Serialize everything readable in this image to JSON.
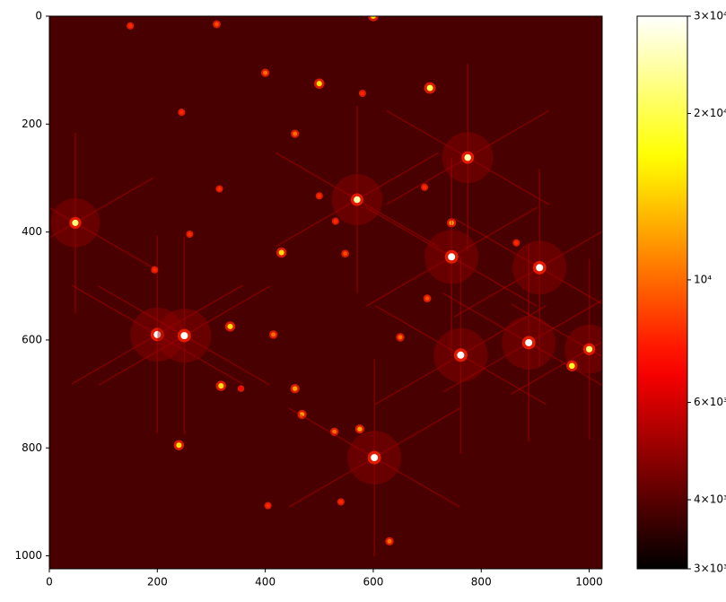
{
  "chart_data": {
    "type": "image",
    "xlim": [
      0,
      1024
    ],
    "ylim": [
      0,
      1024
    ],
    "y_inverted": true,
    "xticks": [
      0,
      200,
      400,
      600,
      800,
      1000
    ],
    "yticks": [
      0,
      200,
      400,
      600,
      800,
      1000
    ],
    "colormap": "hot",
    "background_value": 3800,
    "colorbar": {
      "scale": "log",
      "lim": [
        3000,
        30000
      ],
      "ticks": [
        {
          "value": 3000,
          "label": "3×10³"
        },
        {
          "value": 4000,
          "label": "4×10³"
        },
        {
          "value": 6000,
          "label": "6×10³"
        },
        {
          "value": 10000,
          "label": "10⁴"
        },
        {
          "value": 20000,
          "label": "2×10⁴"
        },
        {
          "value": 30000,
          "label": "3×10⁴"
        }
      ]
    },
    "stars": {
      "x": [
        600,
        150,
        310,
        400,
        500,
        705,
        580,
        245,
        455,
        775,
        570,
        315,
        48,
        745,
        745,
        908,
        430,
        260,
        548,
        530,
        500,
        695,
        700,
        200,
        250,
        335,
        415,
        650,
        762,
        888,
        1000,
        968,
        318,
        455,
        468,
        575,
        528,
        602,
        240,
        630,
        540,
        405,
        195,
        355,
        865
      ],
      "y": [
        0,
        18,
        15,
        105,
        125,
        133,
        143,
        178,
        218,
        262,
        340,
        320,
        383,
        383,
        446,
        466,
        438,
        404,
        440,
        380,
        333,
        317,
        523,
        590,
        592,
        575,
        590,
        595,
        628,
        605,
        617,
        648,
        685,
        690,
        738,
        765,
        770,
        818,
        795,
        973,
        900,
        907,
        470,
        690,
        420
      ],
      "values": [
        15000,
        8000,
        9000,
        10000,
        15000,
        20000,
        8000,
        8000,
        10000,
        25000,
        25000,
        8000,
        22000,
        12000,
        30000,
        30000,
        15000,
        8000,
        9000,
        8000,
        8000,
        8000,
        9000,
        30000,
        30000,
        15000,
        10000,
        10000,
        30000,
        30000,
        22000,
        18000,
        15000,
        12000,
        12000,
        12000,
        10000,
        30000,
        15000,
        10000,
        8000,
        8000,
        8000,
        7000,
        8000
      ]
    }
  }
}
